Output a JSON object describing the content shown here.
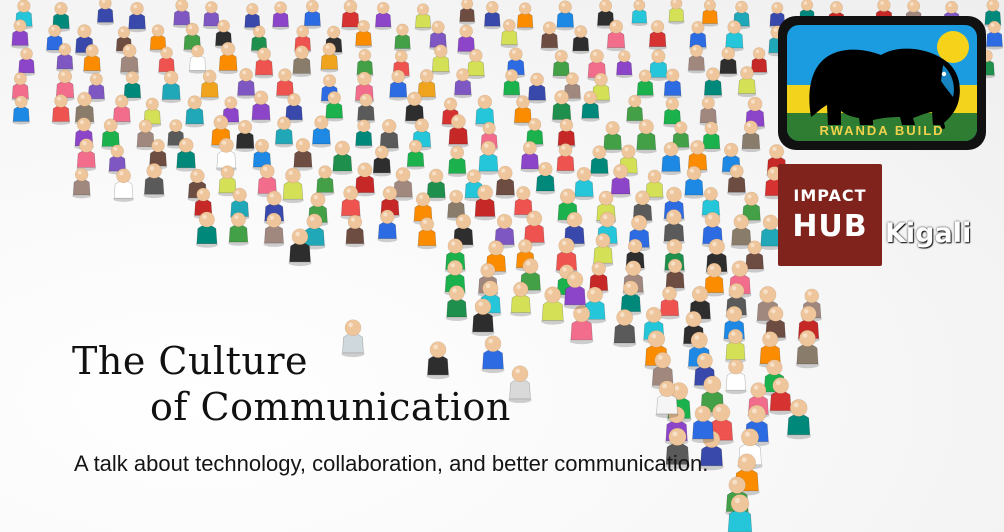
{
  "title": {
    "line1": "The Culture",
    "line2": "of Communication"
  },
  "subtitle": "A talk about technology, collaboration, and better communication.",
  "logos": {
    "rwanda_build": {
      "text": "RWANDA BUILD"
    },
    "impact_hub": {
      "line1": "IMPACT",
      "line2": "HUB",
      "city": "Kigali"
    }
  },
  "colors": {
    "title_text": "#111111",
    "subtitle_text": "#151515",
    "impact_hub_bg": "#7f231c",
    "rwanda_blue": "#1b9be0",
    "rwanda_yellow": "#f3d31b",
    "rwanda_green": "#2f7d32"
  }
}
